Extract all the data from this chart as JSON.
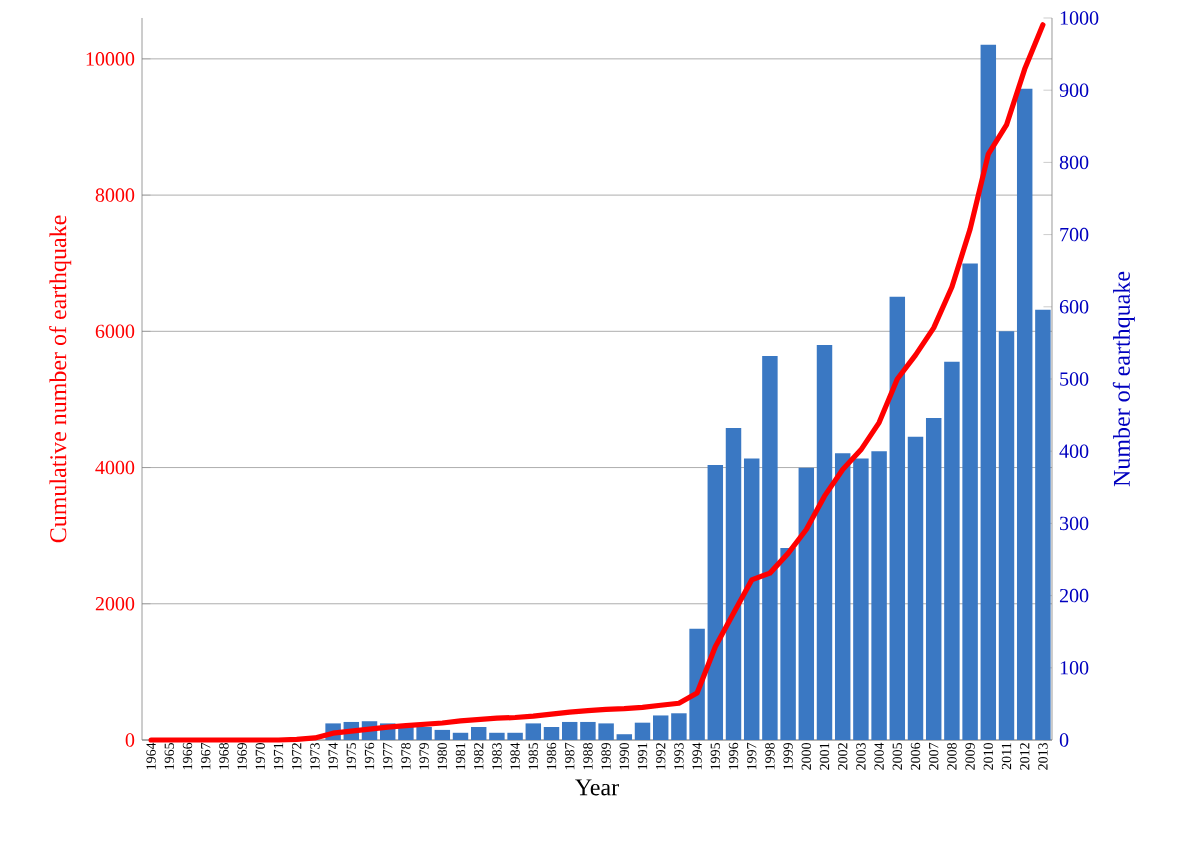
{
  "chart_data": {
    "type": "bar",
    "xlabel": "Year",
    "ylabel": "Cumulative number of earthquake",
    "y2label": "Number of earthquake",
    "categories": [
      "1964",
      "1965",
      "1966",
      "1967",
      "1968",
      "1969",
      "1970",
      "1971",
      "1972",
      "1973",
      "1974",
      "1975",
      "1976",
      "1977",
      "1978",
      "1979",
      "1980",
      "1981",
      "1982",
      "1983",
      "1984",
      "1985",
      "1986",
      "1987",
      "1988",
      "1989",
      "1990",
      "1991",
      "1992",
      "1993",
      "1994",
      "1995",
      "1996",
      "1997",
      "1998",
      "1999",
      "2000",
      "2001",
      "2002",
      "2003",
      "2004",
      "2005",
      "2006",
      "2007",
      "2008",
      "2009",
      "2010",
      "2011",
      "2012",
      "2013"
    ],
    "series": [
      {
        "axis": "y2",
        "color": "#3a78c3",
        "values": [
          0,
          0,
          0,
          0,
          0,
          0,
          0,
          0,
          0,
          0,
          23,
          25,
          26,
          23,
          20,
          18,
          14,
          10,
          18,
          10,
          10,
          23,
          18,
          25,
          25,
          23,
          8,
          24,
          34,
          37,
          154,
          381,
          432,
          390,
          532,
          266,
          377,
          547,
          397,
          390,
          400,
          614,
          420,
          446,
          524,
          660,
          963,
          566,
          902,
          596
        ]
      },
      {
        "type": "line",
        "color": "#ff0000",
        "values": [
          0,
          0,
          0,
          0,
          0,
          0,
          0,
          0,
          10,
          30,
          100,
          130,
          160,
          190,
          210,
          230,
          250,
          280,
          300,
          320,
          330,
          350,
          380,
          410,
          430,
          450,
          460,
          480,
          510,
          540,
          690,
          1370,
          1860,
          2350,
          2450,
          2740,
          3090,
          3580,
          3970,
          4260,
          4660,
          5300,
          5650,
          6050,
          6650,
          7500,
          8600,
          9030,
          9850,
          10500
        ]
      }
    ],
    "ylim": [
      0,
      10600
    ],
    "yticks": [
      0,
      2000,
      4000,
      6000,
      8000,
      10000
    ],
    "y2lim": [
      0,
      1000
    ],
    "y2ticks": [
      0,
      100,
      200,
      300,
      400,
      500,
      600,
      700,
      800,
      900,
      1000
    ],
    "grid": "y"
  }
}
